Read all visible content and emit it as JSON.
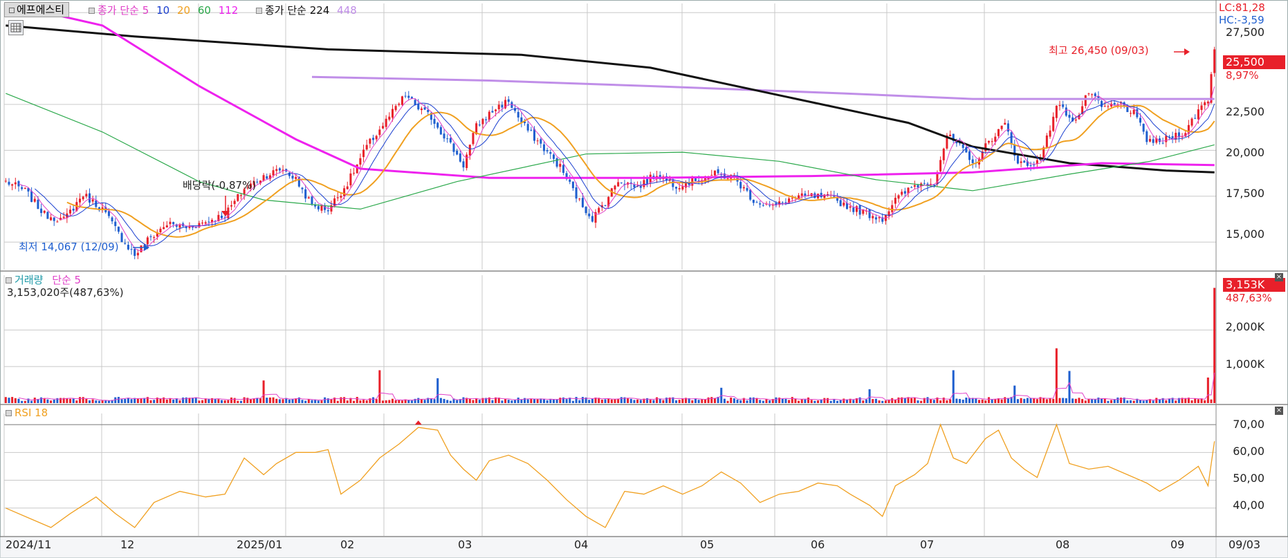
{
  "colors": {
    "up": "#e8202a",
    "down": "#1f5fcf",
    "ma5": "#e040c8",
    "ma10": "#1a3fd0",
    "ma20": "#f0a020",
    "ma60": "#2aa84a",
    "ma112": "#ee22ee",
    "ma224": "#111111",
    "ma448": "#c08ee8",
    "rsi": "#f0a020",
    "grid": "#c8c8c8"
  },
  "toolbar": {
    "stock_name": "에프에스티",
    "ma_group1_label": "종가 단순",
    "ma_group1_periods": [
      "5",
      "10",
      "20",
      "60",
      "112"
    ],
    "ma_group2_label": "종가 단순",
    "ma_group2_periods": [
      "224",
      "448"
    ],
    "table_icon": "grid-table-icon"
  },
  "price_panel": {
    "right_axis_labels": [
      "27,500",
      "22,500",
      "20,000",
      "17,500",
      "15,000"
    ],
    "lc": "LC:81,28",
    "hc": "HC:-3,59",
    "current_price": "25,500",
    "change_pct": "8,97%",
    "high_annotation": "최고 26,450 (09/03)",
    "low_annotation": "최저 14,067 (12/09)",
    "dividend_annotation": "배당락(-0,87%)"
  },
  "volume_panel": {
    "title": "거래량",
    "ma_label": "단순 5",
    "readout": "3,153,020주(487,63%)",
    "current_volume": "3,153K",
    "current_pct": "487,63%",
    "axis_labels": [
      "2,000K",
      "1,000K"
    ]
  },
  "rsi_panel": {
    "title": "RSI 18",
    "axis_labels": [
      "70,00",
      "60,00",
      "50,00",
      "40,00"
    ]
  },
  "x_axis": {
    "labels": [
      "2024/11",
      "12",
      "2025/01",
      "02",
      "03",
      "04",
      "05",
      "06",
      "07",
      "08",
      "09"
    ],
    "right_date": "09/03"
  },
  "chart_data": {
    "type": "candlestick",
    "x_months": [
      "2024/11",
      "12",
      "2025/01",
      "02",
      "03",
      "04",
      "05",
      "06",
      "07",
      "08",
      "09"
    ],
    "price_ylim": [
      13500,
      28000
    ],
    "price_ticks": [
      27500,
      22500,
      20000,
      17500,
      15000
    ],
    "close_anchors": [
      [
        0,
        18300
      ],
      [
        6,
        17800
      ],
      [
        12,
        16500
      ],
      [
        18,
        16200
      ],
      [
        24,
        17600
      ],
      [
        30,
        16800
      ],
      [
        36,
        15200
      ],
      [
        40,
        14300
      ],
      [
        44,
        15100
      ],
      [
        50,
        16000
      ],
      [
        56,
        15800
      ],
      [
        62,
        16100
      ],
      [
        68,
        16500
      ],
      [
        74,
        17900
      ],
      [
        80,
        18600
      ],
      [
        86,
        19000
      ],
      [
        90,
        18400
      ],
      [
        95,
        17000
      ],
      [
        100,
        16800
      ],
      [
        106,
        18200
      ],
      [
        112,
        20200
      ],
      [
        118,
        21600
      ],
      [
        124,
        23000
      ],
      [
        128,
        22300
      ],
      [
        132,
        21800
      ],
      [
        138,
        20300
      ],
      [
        142,
        19200
      ],
      [
        146,
        21300
      ],
      [
        152,
        22300
      ],
      [
        156,
        22700
      ],
      [
        160,
        21500
      ],
      [
        166,
        20300
      ],
      [
        172,
        19100
      ],
      [
        178,
        17200
      ],
      [
        182,
        16300
      ],
      [
        186,
        17200
      ],
      [
        190,
        18400
      ],
      [
        196,
        18000
      ],
      [
        202,
        18700
      ],
      [
        208,
        18100
      ],
      [
        214,
        18400
      ],
      [
        220,
        18700
      ],
      [
        226,
        18500
      ],
      [
        232,
        17300
      ],
      [
        238,
        16900
      ],
      [
        244,
        17400
      ],
      [
        250,
        17500
      ],
      [
        256,
        17400
      ],
      [
        262,
        16900
      ],
      [
        268,
        16500
      ],
      [
        272,
        16300
      ],
      [
        276,
        17300
      ],
      [
        282,
        18100
      ],
      [
        288,
        18300
      ],
      [
        292,
        20800
      ],
      [
        296,
        20200
      ],
      [
        300,
        19200
      ],
      [
        306,
        20700
      ],
      [
        310,
        21400
      ],
      [
        314,
        19400
      ],
      [
        318,
        19100
      ],
      [
        322,
        20000
      ],
      [
        326,
        22500
      ],
      [
        332,
        21600
      ],
      [
        336,
        23200
      ],
      [
        340,
        22300
      ],
      [
        346,
        22500
      ],
      [
        350,
        22000
      ],
      [
        354,
        20600
      ],
      [
        358,
        20400
      ],
      [
        362,
        20800
      ],
      [
        366,
        21000
      ],
      [
        370,
        22200
      ],
      [
        373,
        22800
      ],
      [
        375,
        25500
      ]
    ],
    "ma112_anchors": [
      [
        0,
        28000
      ],
      [
        30,
        26800
      ],
      [
        60,
        23500
      ],
      [
        90,
        20600
      ],
      [
        110,
        19000
      ],
      [
        150,
        18500
      ],
      [
        200,
        18500
      ],
      [
        250,
        18600
      ],
      [
        300,
        18800
      ],
      [
        340,
        19300
      ],
      [
        375,
        19200
      ]
    ],
    "ma224_anchors": [
      [
        0,
        26800
      ],
      [
        40,
        26200
      ],
      [
        100,
        25500
      ],
      [
        160,
        25200
      ],
      [
        200,
        24500
      ],
      [
        240,
        23000
      ],
      [
        280,
        21500
      ],
      [
        300,
        20200
      ],
      [
        330,
        19300
      ],
      [
        360,
        18900
      ],
      [
        375,
        18800
      ]
    ],
    "ma448_anchors": [
      [
        95,
        24000
      ],
      [
        150,
        23800
      ],
      [
        200,
        23500
      ],
      [
        260,
        23100
      ],
      [
        300,
        22800
      ],
      [
        375,
        22800
      ]
    ],
    "ma60_anchors": [
      [
        0,
        23100
      ],
      [
        30,
        21000
      ],
      [
        60,
        18300
      ],
      [
        80,
        17300
      ],
      [
        110,
        16800
      ],
      [
        140,
        18300
      ],
      [
        180,
        19800
      ],
      [
        210,
        19900
      ],
      [
        240,
        19400
      ],
      [
        270,
        18400
      ],
      [
        300,
        17800
      ],
      [
        330,
        18700
      ],
      [
        355,
        19400
      ],
      [
        375,
        20300
      ]
    ],
    "volume_ylim": [
      0,
      3500
    ],
    "volume_ticks": [
      2000,
      1000
    ],
    "volume_spikes": [
      [
        80,
        620
      ],
      [
        116,
        900
      ],
      [
        134,
        680
      ],
      [
        222,
        420
      ],
      [
        268,
        380
      ],
      [
        294,
        900
      ],
      [
        313,
        480
      ],
      [
        326,
        1500
      ],
      [
        330,
        880
      ],
      [
        373,
        700
      ],
      [
        375,
        3153
      ]
    ],
    "rsi_ylim": [
      30,
      74
    ],
    "rsi_ticks": [
      70,
      60,
      50,
      40
    ],
    "rsi_anchors": [
      [
        0,
        40
      ],
      [
        8,
        36
      ],
      [
        14,
        33
      ],
      [
        20,
        38
      ],
      [
        28,
        44
      ],
      [
        34,
        38
      ],
      [
        40,
        33
      ],
      [
        46,
        42
      ],
      [
        54,
        46
      ],
      [
        62,
        44
      ],
      [
        68,
        45
      ],
      [
        74,
        58
      ],
      [
        80,
        52
      ],
      [
        84,
        56
      ],
      [
        90,
        60
      ],
      [
        96,
        60
      ],
      [
        100,
        61
      ],
      [
        104,
        45
      ],
      [
        110,
        50
      ],
      [
        116,
        58
      ],
      [
        122,
        63
      ],
      [
        128,
        69
      ],
      [
        134,
        68
      ],
      [
        138,
        59
      ],
      [
        142,
        54
      ],
      [
        146,
        50
      ],
      [
        150,
        57
      ],
      [
        156,
        59
      ],
      [
        162,
        56
      ],
      [
        168,
        50
      ],
      [
        174,
        43
      ],
      [
        180,
        37
      ],
      [
        186,
        33
      ],
      [
        192,
        46
      ],
      [
        198,
        45
      ],
      [
        204,
        48
      ],
      [
        210,
        45
      ],
      [
        216,
        48
      ],
      [
        222,
        53
      ],
      [
        228,
        49
      ],
      [
        234,
        42
      ],
      [
        240,
        45
      ],
      [
        246,
        46
      ],
      [
        252,
        49
      ],
      [
        258,
        48
      ],
      [
        262,
        45
      ],
      [
        268,
        41
      ],
      [
        272,
        37
      ],
      [
        276,
        48
      ],
      [
        282,
        52
      ],
      [
        286,
        56
      ],
      [
        290,
        70
      ],
      [
        294,
        58
      ],
      [
        298,
        56
      ],
      [
        304,
        65
      ],
      [
        308,
        68
      ],
      [
        312,
        58
      ],
      [
        316,
        54
      ],
      [
        320,
        51
      ],
      [
        326,
        70
      ],
      [
        330,
        56
      ],
      [
        336,
        54
      ],
      [
        342,
        55
      ],
      [
        348,
        52
      ],
      [
        354,
        49
      ],
      [
        358,
        46
      ],
      [
        364,
        50
      ],
      [
        370,
        55
      ],
      [
        373,
        48
      ],
      [
        375,
        64
      ]
    ]
  }
}
